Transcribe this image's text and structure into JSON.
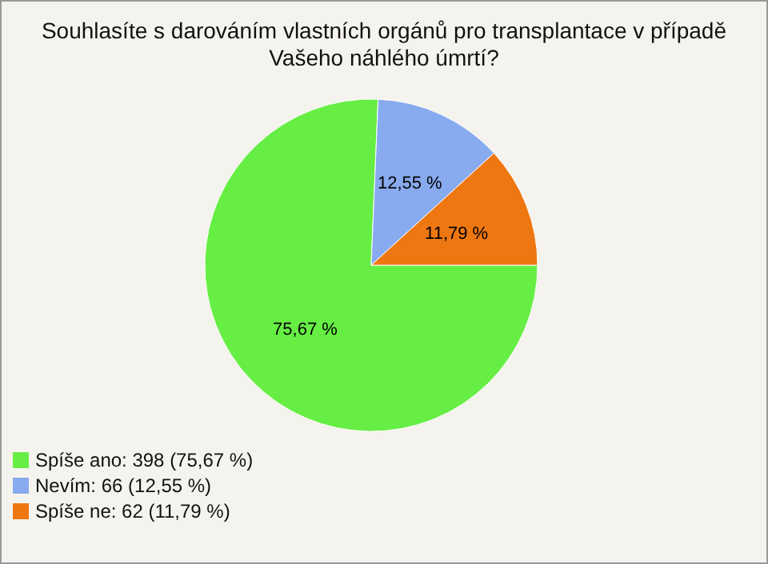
{
  "chart_data": {
    "type": "pie",
    "title": "Souhlasíte s darováním vlastních orgánů pro transplantace v případě Vašeho náhlého úmrtí?",
    "categories": [
      "Spíše ano: 398 (75,67 %)",
      "Nevím: 66 (12,55 %)",
      "Spíše ne: 62 (11,79 %)"
    ],
    "values": [
      75.67,
      12.55,
      11.79
    ],
    "value_labels": [
      "75,67 %",
      "12,55 %",
      "11,79 %"
    ],
    "colors": [
      "#66ee44",
      "#88aaee",
      "#ee7711"
    ],
    "legend": "bottom left"
  }
}
